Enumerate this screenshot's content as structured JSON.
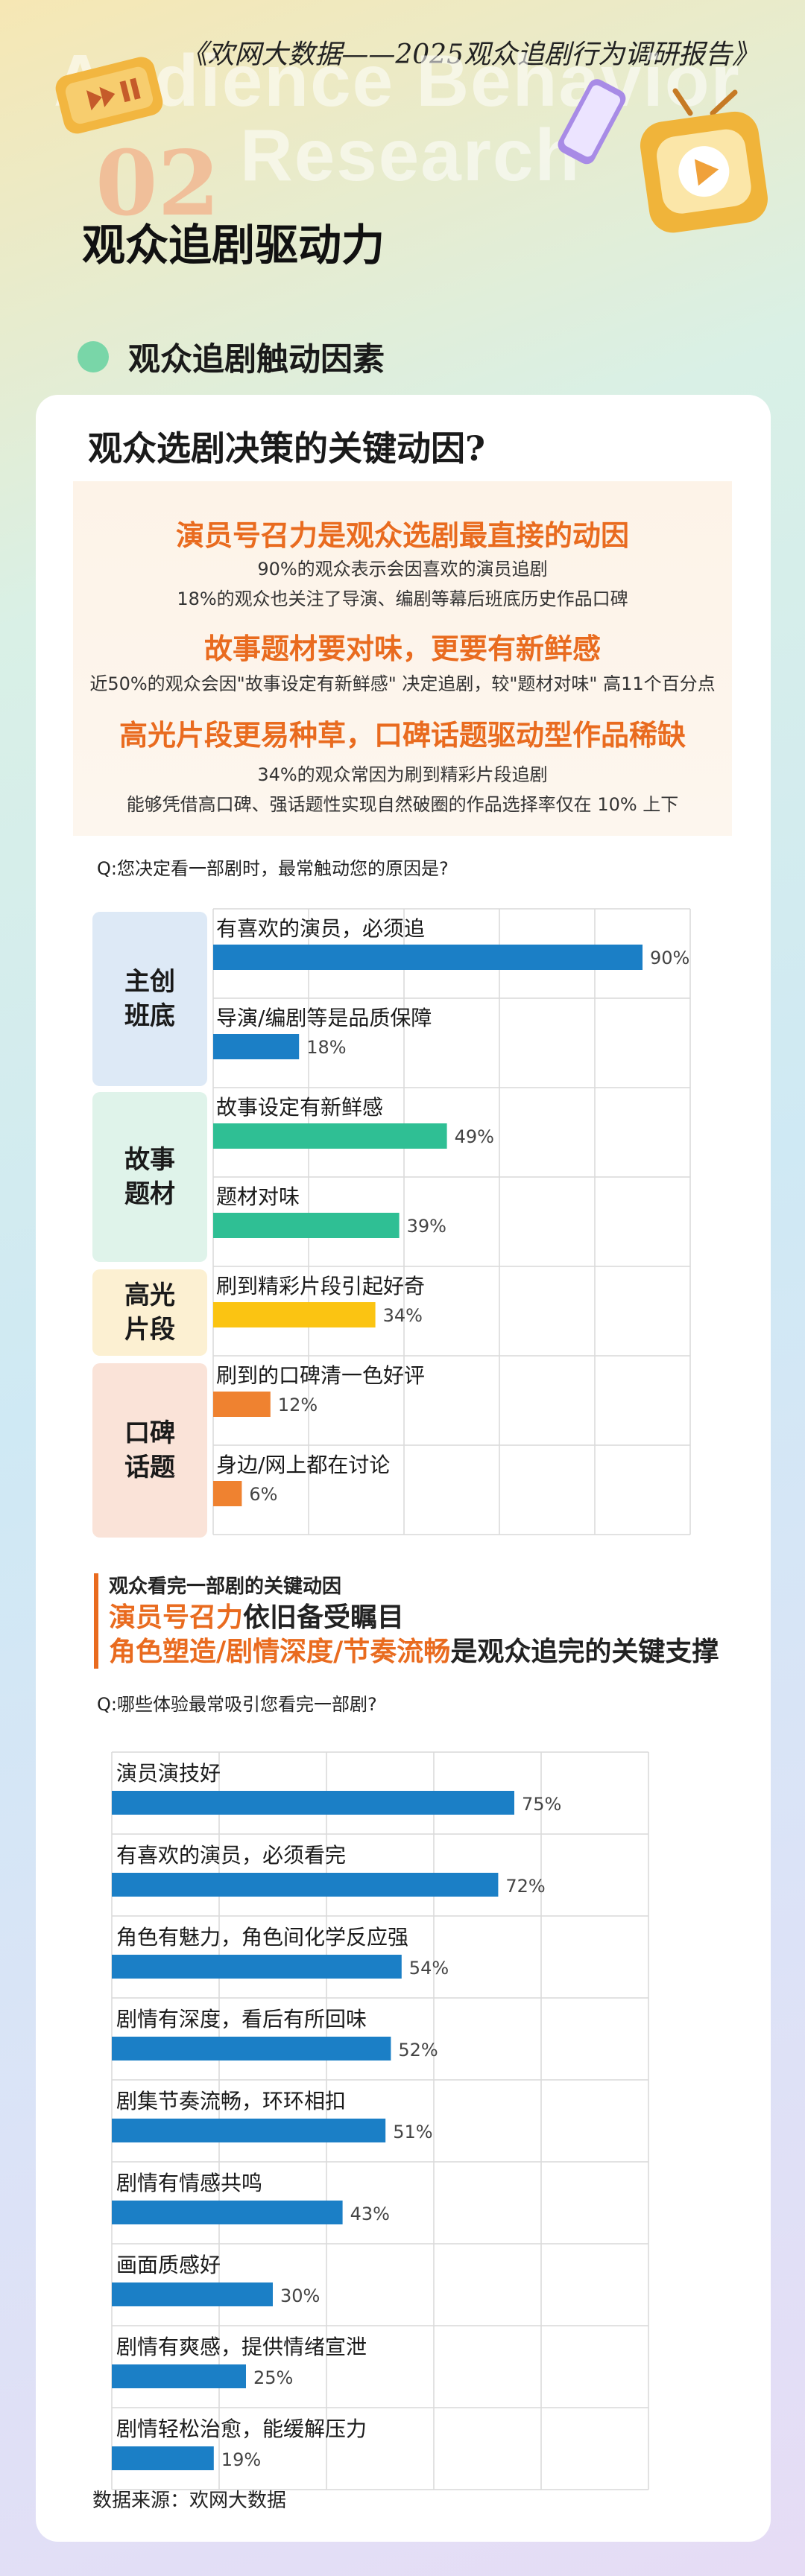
{
  "header": {
    "report_title": "《欢网大数据——2025观众追剧行为调研报告》",
    "watermark_line1": "Audience Behavior",
    "watermark_line2": "Research",
    "section_number": "02",
    "section_title": "观众追剧驱动力",
    "subtitle": "观众追剧触动因素"
  },
  "card": {
    "title": "观众选剧决策的关键动因?",
    "highlights": [
      {
        "heading": "演员号召力是观众选剧最直接的动因",
        "lines": [
          "90%的观众表示会因喜欢的演员追剧",
          "18%的观众也关注了导演、编剧等幕后班底历史作品口碑"
        ]
      },
      {
        "heading": "故事题材要对味，更要有新鲜感",
        "lines": [
          "近50%的观众会因\"故事设定有新鲜感\" 决定追剧，较\"题材对味\" 高11个百分点"
        ]
      },
      {
        "heading": "高光片段更易种草，口碑话题驱动型作品稀缺",
        "lines": [
          "34%的观众常因为刷到精彩片段追剧",
          "能够凭借高口碑、强话题性实现自然破圈的作品选择率仅在 10% 上下"
        ]
      }
    ]
  },
  "section2": {
    "small_title": "观众看完一部剧的关键动因",
    "line1_orange": "演员号召力",
    "line1_rest": "依旧备受瞩目",
    "line2_orange": "角色塑造/剧情深度/节奏流畅",
    "line2_rest": "是观众追完的关键支撑"
  },
  "source": "数据来源：欢网大数据",
  "colors": {
    "blue": "#1b7fc6",
    "teal": "#2fbf94",
    "yellow": "#fbc412",
    "orange": "#ef8230",
    "orange_text": "#e96b1f"
  },
  "chart_data": [
    {
      "type": "bar",
      "orientation": "horizontal",
      "question": "Q:您决定看一部剧时，最常触动您的原因是?",
      "groups": [
        {
          "name": "主创班底",
          "color": "#1b7fc6",
          "box_color": "#dde9f6",
          "items": [
            {
              "label": "有喜欢的演员，必须追",
              "value": 90
            },
            {
              "label": "导演/编剧等是品质保障",
              "value": 18
            }
          ]
        },
        {
          "name": "故事题材",
          "color": "#2fbf94",
          "box_color": "#dff3ea",
          "items": [
            {
              "label": "故事设定有新鲜感",
              "value": 49
            },
            {
              "label": "题材对味",
              "value": 39
            }
          ]
        },
        {
          "name": "高光片段",
          "color": "#fbc412",
          "box_color": "#fcf0d2",
          "items": [
            {
              "label": "刷到精彩片段引起好奇",
              "value": 34
            }
          ]
        },
        {
          "name": "口碑话题",
          "color": "#ef8230",
          "box_color": "#fae3d8",
          "items": [
            {
              "label": "刷到的口碑清一色好评",
              "value": 12
            },
            {
              "label": "身边/网上都在讨论",
              "value": 6
            }
          ]
        }
      ],
      "unit": "%",
      "xlim": [
        0,
        100
      ]
    },
    {
      "type": "bar",
      "orientation": "horizontal",
      "question": "Q:哪些体验最常吸引您看完一部剧?",
      "color": "#1b7fc6",
      "categories": [
        "演员演技好",
        "有喜欢的演员，必须看完",
        "角色有魅力，角色间化学反应强",
        "剧情有深度，看后有所回味",
        "剧集节奏流畅，环环相扣",
        "剧情有情感共鸣",
        "画面质感好",
        "剧情有爽感，提供情绪宣泄",
        "剧情轻松治愈，能缓解压力"
      ],
      "values": [
        75,
        72,
        54,
        52,
        51,
        43,
        30,
        25,
        19
      ],
      "unit": "%",
      "xlim": [
        0,
        100
      ]
    }
  ]
}
